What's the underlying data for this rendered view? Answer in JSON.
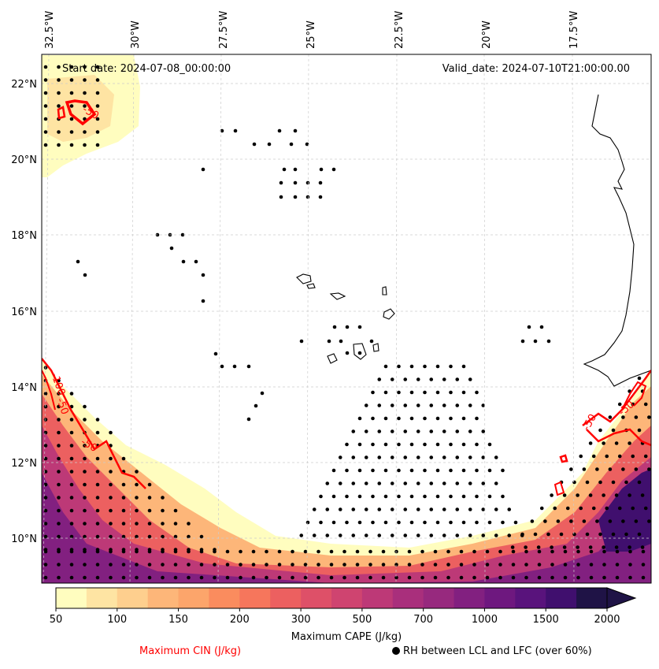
{
  "map": {
    "start_date": "Start date: 2024-07-08_00:00:00",
    "valid_date": "Valid_date: 2024-07-10T21:00:00.00",
    "lon_labels": [
      "32.5°W",
      "30°W",
      "27.5°W",
      "25°W",
      "22.5°W",
      "20°W",
      "17.5°W"
    ],
    "lat_labels": [
      "22°N",
      "20°N",
      "18°N",
      "16°N",
      "14°N",
      "12°N",
      "10°N"
    ],
    "contour_labels": [
      "-50",
      "-100",
      "-50",
      "-50",
      "-50",
      "-50"
    ]
  },
  "colorbar": {
    "ticks": [
      "50",
      "100",
      "150",
      "200",
      "300",
      "500",
      "700",
      "1000",
      "1500",
      "2000"
    ],
    "colors": [
      "#fffdbf",
      "#fee4a3",
      "#fecf8e",
      "#fdb679",
      "#fca56b",
      "#fa8c5e",
      "#f6765c",
      "#ec6060",
      "#de5068",
      "#cf4470",
      "#bd3977",
      "#a92f7c",
      "#97297e",
      "#822080",
      "#6e187f",
      "#59137c",
      "#400f6e",
      "#1f1346"
    ],
    "label": "Maximum CAPE (J/kg)"
  },
  "legend": {
    "cin_label": "Maximum CIN (J/kg)",
    "rh_label": "RH between LCL and LFC (over 60%)"
  }
}
